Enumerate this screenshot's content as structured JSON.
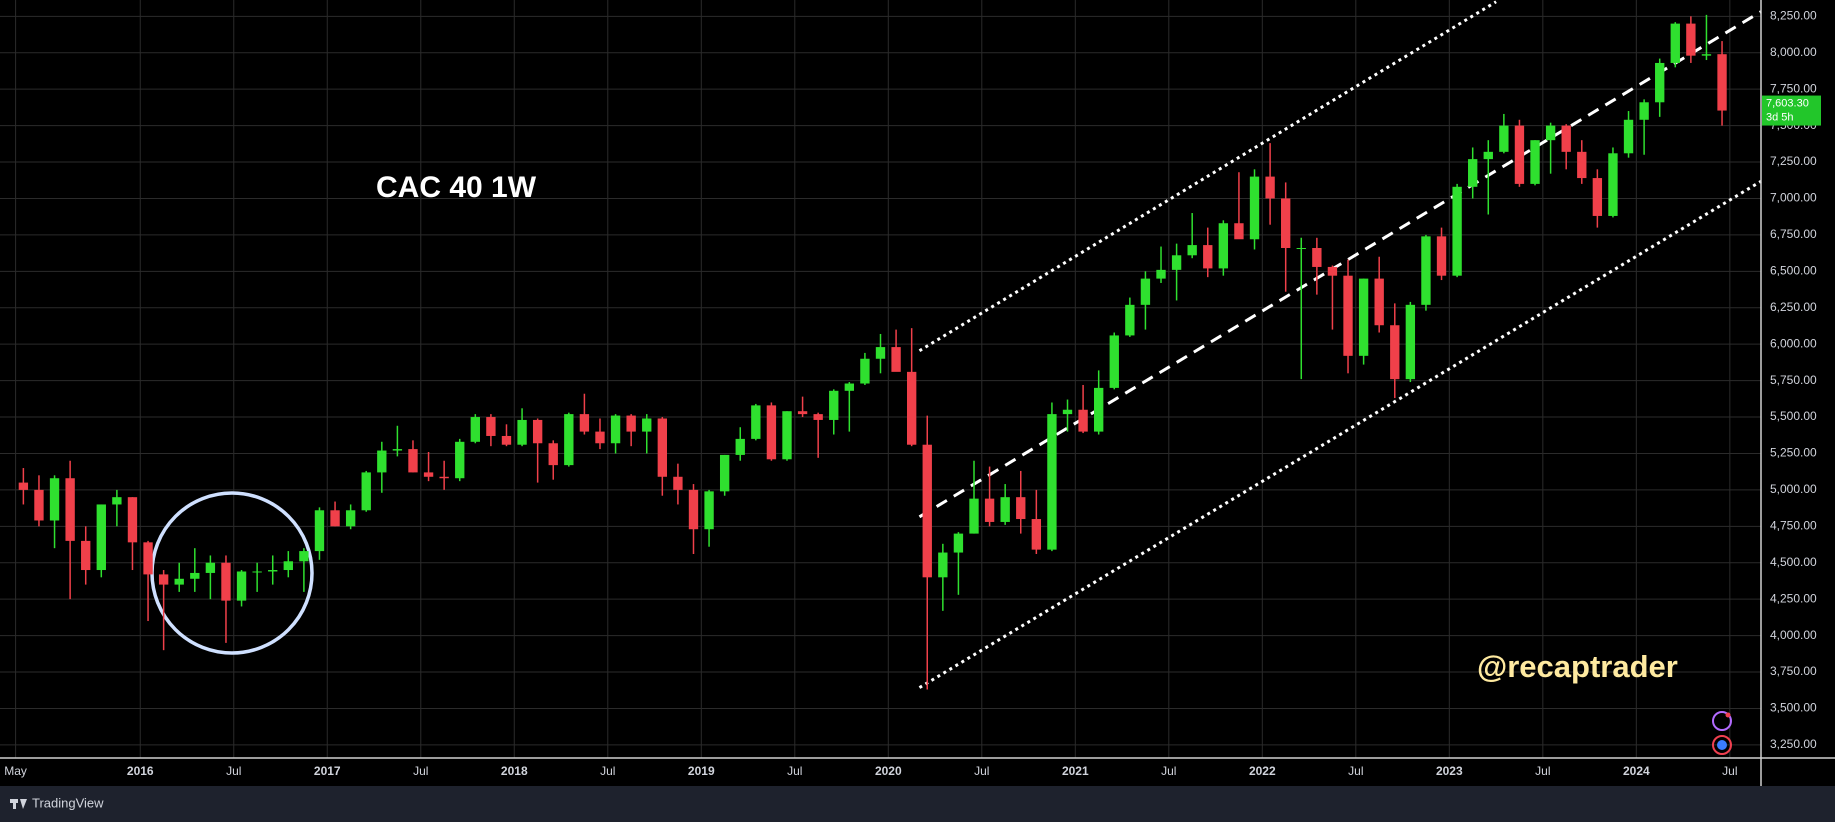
{
  "chart_data": {
    "type": "candlestick",
    "title": "CAC 40 1W",
    "watermark": "@recaptrader",
    "brand": "TradingView",
    "up_color": "#2fe02f",
    "down_color": "#f0404a",
    "grid": true,
    "x": [
      "2015-05",
      "2015-06",
      "2015-07",
      "2015-08",
      "2015-09",
      "2015-10",
      "2015-11",
      "2015-12",
      "2016-01",
      "2016-02",
      "2016-03",
      "2016-04",
      "2016-05",
      "2016-06",
      "2016-07",
      "2016-08",
      "2016-09",
      "2016-10",
      "2016-11",
      "2016-12",
      "2017-01",
      "2017-02",
      "2017-03",
      "2017-04",
      "2017-05",
      "2017-06",
      "2017-07",
      "2017-08",
      "2017-09",
      "2017-10",
      "2017-11",
      "2017-12",
      "2018-01",
      "2018-02",
      "2018-03",
      "2018-04",
      "2018-05",
      "2018-06",
      "2018-07",
      "2018-08",
      "2018-09",
      "2018-10",
      "2018-11",
      "2018-12",
      "2019-01",
      "2019-02",
      "2019-03",
      "2019-04",
      "2019-05",
      "2019-06",
      "2019-07",
      "2019-08",
      "2019-09",
      "2019-10",
      "2019-11",
      "2019-12",
      "2020-01",
      "2020-02",
      "2020-03",
      "2020-04",
      "2020-05",
      "2020-06",
      "2020-07",
      "2020-08",
      "2020-09",
      "2020-10",
      "2020-11",
      "2020-12",
      "2021-01",
      "2021-02",
      "2021-03",
      "2021-04",
      "2021-05",
      "2021-06",
      "2021-07",
      "2021-08",
      "2021-09",
      "2021-10",
      "2021-11",
      "2021-12",
      "2022-01",
      "2022-02",
      "2022-03",
      "2022-04",
      "2022-05",
      "2022-06",
      "2022-07",
      "2022-08",
      "2022-09",
      "2022-10",
      "2022-11",
      "2022-12",
      "2023-01",
      "2023-02",
      "2023-03",
      "2023-04",
      "2023-05",
      "2023-06",
      "2023-07",
      "2023-08",
      "2023-09",
      "2023-10",
      "2023-11",
      "2023-12",
      "2024-01",
      "2024-02",
      "2024-03",
      "2024-04",
      "2024-05",
      "2024-06"
    ],
    "open": [
      5050,
      5000,
      4790,
      5080,
      4650,
      4450,
      4900,
      4950,
      4640,
      4420,
      4350,
      4390,
      4430,
      4500,
      4240,
      4440,
      4440,
      4450,
      4510,
      4580,
      4860,
      4750,
      4860,
      5120,
      5270,
      5280,
      5120,
      5090,
      5080,
      5330,
      5500,
      5370,
      5310,
      5480,
      5320,
      5170,
      5520,
      5400,
      5320,
      5510,
      5400,
      5490,
      5090,
      5000,
      4730,
      4990,
      5240,
      5350,
      5580,
      5210,
      5540,
      5520,
      5480,
      5680,
      5730,
      5900,
      5980,
      5810,
      5310,
      4400,
      4570,
      4700,
      4940,
      4780,
      4950,
      4800,
      4590,
      5520,
      5550,
      5400,
      5700,
      6060,
      6270,
      6450,
      6510,
      6610,
      6680,
      6520,
      6830,
      6720,
      7150,
      7000,
      6660,
      6660,
      6530,
      6470,
      5920,
      6450,
      6130,
      5760,
      6270,
      6740,
      6470,
      7080,
      7270,
      7320,
      7500,
      7100,
      7400,
      7500,
      7320,
      7140,
      6880,
      7310,
      7540,
      7660,
      7930,
      8200,
      7980,
      7990
    ],
    "high": [
      5150,
      5100,
      5100,
      5200,
      4750,
      4900,
      5000,
      4950,
      4650,
      4450,
      4500,
      4600,
      4550,
      4550,
      4450,
      4500,
      4550,
      4580,
      4600,
      4880,
      4920,
      4900,
      5130,
      5330,
      5440,
      5340,
      5260,
      5200,
      5350,
      5520,
      5520,
      5450,
      5560,
      5490,
      5340,
      5530,
      5660,
      5490,
      5520,
      5520,
      5520,
      5500,
      5180,
      5040,
      5000,
      5240,
      5430,
      5590,
      5600,
      5540,
      5640,
      5530,
      5690,
      5740,
      5940,
      6070,
      6100,
      6110,
      5510,
      4630,
      4710,
      5200,
      5160,
      5040,
      5130,
      5000,
      5600,
      5620,
      5720,
      5820,
      6080,
      6320,
      6500,
      6670,
      6690,
      6900,
      6800,
      6850,
      7180,
      7200,
      7380,
      7110,
      6730,
      6730,
      6540,
      6580,
      6450,
      6600,
      6280,
      6290,
      6750,
      6800,
      7100,
      7350,
      7400,
      7580,
      7540,
      7400,
      7520,
      7510,
      7400,
      7200,
      7350,
      7600,
      7680,
      7960,
      8210,
      8250,
      8260,
      8080
    ],
    "low": [
      4900,
      4750,
      4600,
      4250,
      4350,
      4400,
      4750,
      4450,
      4100,
      3900,
      4300,
      4300,
      4250,
      3950,
      4200,
      4300,
      4350,
      4400,
      4300,
      4520,
      4750,
      4730,
      4850,
      4980,
      5230,
      5120,
      5060,
      5000,
      5060,
      5320,
      5300,
      5300,
      5300,
      5050,
      5070,
      5160,
      5380,
      5280,
      5250,
      5300,
      5250,
      4960,
      4900,
      4560,
      4610,
      4960,
      5200,
      5340,
      5200,
      5200,
      5500,
      5220,
      5380,
      5400,
      5720,
      5800,
      5830,
      5300,
      3630,
      4170,
      4280,
      4700,
      4750,
      4760,
      4700,
      4560,
      4580,
      5400,
      5390,
      5380,
      5690,
      6050,
      6100,
      6420,
      6300,
      6590,
      6460,
      6470,
      6730,
      6650,
      6820,
      6360,
      5760,
      6340,
      6100,
      5800,
      5860,
      6080,
      5630,
      5740,
      6230,
      6440,
      6460,
      7000,
      6890,
      7310,
      7080,
      7090,
      7170,
      7200,
      7100,
      6800,
      6870,
      7280,
      7300,
      7560,
      7900,
      7930,
      7950,
      7500
    ],
    "close": [
      5000,
      4790,
      5080,
      4650,
      4450,
      4900,
      4950,
      4640,
      4420,
      4350,
      4390,
      4430,
      4500,
      4240,
      4440,
      4440,
      4450,
      4510,
      4580,
      4860,
      4750,
      4860,
      5120,
      5270,
      5280,
      5120,
      5090,
      5080,
      5330,
      5500,
      5370,
      5310,
      5480,
      5320,
      5170,
      5520,
      5400,
      5320,
      5510,
      5400,
      5490,
      5090,
      5000,
      4730,
      4990,
      5240,
      5350,
      5580,
      5210,
      5540,
      5520,
      5480,
      5680,
      5730,
      5900,
      5980,
      5810,
      5310,
      4400,
      4570,
      4700,
      4940,
      4780,
      4950,
      4800,
      4590,
      5520,
      5550,
      5400,
      5700,
      6060,
      6270,
      6450,
      6510,
      6610,
      6680,
      6520,
      6830,
      6720,
      7150,
      7000,
      6660,
      6660,
      6530,
      6470,
      5920,
      6450,
      6130,
      5760,
      6270,
      6740,
      6470,
      7080,
      7270,
      7320,
      7500,
      7100,
      7400,
      7500,
      7320,
      7140,
      6880,
      7310,
      7540,
      7660,
      7930,
      8200,
      7980,
      7990,
      7603.3
    ],
    "xlim": [
      "2015-04",
      "2024-09"
    ],
    "xticks": [
      {
        "value": "2015-05",
        "label": "May"
      },
      {
        "value": "2016-01",
        "label": "2016"
      },
      {
        "value": "2016-07",
        "label": "Jul"
      },
      {
        "value": "2017-01",
        "label": "2017"
      },
      {
        "value": "2017-07",
        "label": "Jul"
      },
      {
        "value": "2018-01",
        "label": "2018"
      },
      {
        "value": "2018-07",
        "label": "Jul"
      },
      {
        "value": "2019-01",
        "label": "2019"
      },
      {
        "value": "2019-07",
        "label": "Jul"
      },
      {
        "value": "2020-01",
        "label": "2020"
      },
      {
        "value": "2020-07",
        "label": "Jul"
      },
      {
        "value": "2021-01",
        "label": "2021"
      },
      {
        "value": "2021-07",
        "label": "Jul"
      },
      {
        "value": "2022-01",
        "label": "2022"
      },
      {
        "value": "2022-07",
        "label": "Jul"
      },
      {
        "value": "2023-01",
        "label": "2023"
      },
      {
        "value": "2023-07",
        "label": "Jul"
      },
      {
        "value": "2024-01",
        "label": "2024"
      },
      {
        "value": "2024-07",
        "label": "Jul"
      }
    ],
    "ylim": [
      3160,
      8362
    ],
    "yticks": [
      {
        "value": 3250,
        "label": "3,250.00"
      },
      {
        "value": 3500,
        "label": "3,500.00"
      },
      {
        "value": 3750,
        "label": "3,750.00"
      },
      {
        "value": 4000,
        "label": "4,000.00"
      },
      {
        "value": 4250,
        "label": "4,250.00"
      },
      {
        "value": 4500,
        "label": "4,500.00"
      },
      {
        "value": 4750,
        "label": "4,750.00"
      },
      {
        "value": 5000,
        "label": "5,000.00"
      },
      {
        "value": 5250,
        "label": "5,250.00"
      },
      {
        "value": 5500,
        "label": "5,500.00"
      },
      {
        "value": 5750,
        "label": "5,750.00"
      },
      {
        "value": 6000,
        "label": "6,000.00"
      },
      {
        "value": 6250,
        "label": "6,250.00"
      },
      {
        "value": 6500,
        "label": "6,500.00"
      },
      {
        "value": 6750,
        "label": "6,750.00"
      },
      {
        "value": 7000,
        "label": "7,000.00"
      },
      {
        "value": 7250,
        "label": "7,250.00"
      },
      {
        "value": 7500,
        "label": "7,500.00"
      },
      {
        "value": 7750,
        "label": "7,750.00"
      },
      {
        "value": 8000,
        "label": "8,000.00"
      },
      {
        "value": 8250,
        "label": "8,250.00"
      }
    ],
    "last_price": {
      "value": 7603.3,
      "label": "7,603.30",
      "countdown": "3d 5h"
    },
    "trendlines": [
      {
        "x": [
          "2020-03",
          "2023-04"
        ],
        "y": [
          5955,
          8350
        ],
        "style": "dotted"
      },
      {
        "x": [
          "2020-03",
          "2024-09"
        ],
        "y": [
          4815,
          8282
        ],
        "style": "dashed"
      },
      {
        "x": [
          "2020-03",
          "2024-09"
        ],
        "y": [
          3643,
          7118
        ],
        "style": "dotted"
      }
    ]
  }
}
